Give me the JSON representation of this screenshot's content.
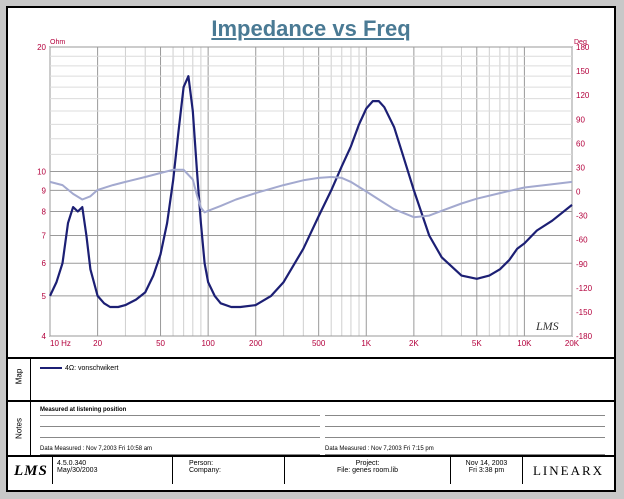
{
  "chart_data": {
    "type": "line",
    "title": "Impedance vs Freq",
    "y_left_label": "Ohm",
    "y_right_label": "Deg",
    "x_scale": "log",
    "y_left_scale": "log",
    "xlim": [
      10,
      20000
    ],
    "ylim_left": [
      4,
      20
    ],
    "ylim_right": [
      -180,
      180
    ],
    "grid": true,
    "x_ticks": [
      {
        "value": 10,
        "label": "10  Hz"
      },
      {
        "value": 20,
        "label": "20"
      },
      {
        "value": 50,
        "label": "50"
      },
      {
        "value": 100,
        "label": "100"
      },
      {
        "value": 200,
        "label": "200"
      },
      {
        "value": 500,
        "label": "500"
      },
      {
        "value": 1000,
        "label": "1K"
      },
      {
        "value": 2000,
        "label": "2K"
      },
      {
        "value": 5000,
        "label": "5K"
      },
      {
        "value": 10000,
        "label": "10K"
      },
      {
        "value": 20000,
        "label": "20K"
      }
    ],
    "y_left_ticks": [
      {
        "value": 20,
        "label": "20"
      },
      {
        "value": 10,
        "label": "10"
      },
      {
        "value": 9,
        "label": "9"
      },
      {
        "value": 8,
        "label": "8"
      },
      {
        "value": 7,
        "label": "7"
      },
      {
        "value": 6,
        "label": "6"
      },
      {
        "value": 5,
        "label": "5"
      },
      {
        "value": 4,
        "label": "4"
      }
    ],
    "y_right_ticks": [
      180,
      150,
      120,
      90,
      60,
      30,
      0,
      -30,
      -60,
      -90,
      -120,
      -150,
      -180
    ],
    "series": [
      {
        "name": "4Ω: vonschwikert",
        "axis": "left",
        "color": "#1c1f74",
        "x": [
          10,
          11,
          12,
          13,
          14,
          15,
          16,
          17,
          18,
          20,
          22,
          24,
          27,
          30,
          35,
          40,
          45,
          50,
          55,
          60,
          65,
          70,
          75,
          80,
          85,
          90,
          95,
          100,
          110,
          120,
          140,
          160,
          200,
          250,
          300,
          400,
          500,
          600,
          700,
          800,
          900,
          1000,
          1100,
          1200,
          1300,
          1500,
          1700,
          2000,
          2500,
          3000,
          4000,
          5000,
          6000,
          7000,
          8000,
          9000,
          10000,
          12000,
          15000,
          20000
        ],
        "y": [
          5.0,
          5.4,
          6.0,
          7.5,
          8.2,
          8.0,
          8.2,
          7.0,
          5.8,
          5.0,
          4.8,
          4.7,
          4.7,
          4.75,
          4.9,
          5.1,
          5.6,
          6.3,
          7.5,
          9.5,
          12.5,
          16.0,
          17.0,
          14.0,
          10.0,
          7.5,
          6.0,
          5.4,
          5.0,
          4.8,
          4.7,
          4.7,
          4.75,
          5.0,
          5.4,
          6.5,
          7.8,
          9.0,
          10.3,
          11.5,
          13.0,
          14.2,
          14.8,
          14.8,
          14.3,
          12.8,
          11.0,
          9.0,
          7.0,
          6.2,
          5.6,
          5.5,
          5.6,
          5.8,
          6.1,
          6.5,
          6.7,
          7.2,
          7.6,
          8.3
        ]
      },
      {
        "name": "Phase",
        "axis": "right",
        "color": "#a3a9cf",
        "x": [
          10,
          12,
          14,
          16,
          18,
          20,
          25,
          30,
          40,
          50,
          60,
          70,
          80,
          85,
          90,
          95,
          100,
          120,
          150,
          200,
          300,
          400,
          500,
          600,
          700,
          800,
          1000,
          1200,
          1500,
          2000,
          2500,
          3000,
          4000,
          5000,
          7000,
          10000,
          15000,
          20000
        ],
        "y": [
          12,
          8,
          -3,
          -10,
          -6,
          2,
          8,
          12,
          18,
          23,
          27,
          27,
          15,
          -5,
          -20,
          -26,
          -24,
          -18,
          -10,
          -2,
          8,
          14,
          17,
          18,
          17,
          12,
          0,
          -10,
          -22,
          -32,
          -30,
          -24,
          -15,
          -9,
          -2,
          5,
          9,
          12
        ]
      }
    ]
  },
  "legend": {
    "side_label": "Map",
    "entry": "4Ω: vonschwikert"
  },
  "notes": {
    "side_label": "Notes",
    "heading": "Measured at listening position",
    "left_date": "Data Measured : Nov 7,2003  Fri 10:58 am",
    "right_date": "Data Measured : Nov 7,2003  Fri 7:15 pm"
  },
  "watermark": "LMS",
  "footer": {
    "logo": "LMS",
    "version": "4.5.0.340",
    "version_date": "May/30/2003",
    "person_label": "Person:",
    "company_label": "Company:",
    "project_label": "Project:",
    "file_label": "File: genes room.lib",
    "date": "Nov 14, 2003",
    "time": "Fri   3:38 pm",
    "brand": "LINEARX"
  }
}
